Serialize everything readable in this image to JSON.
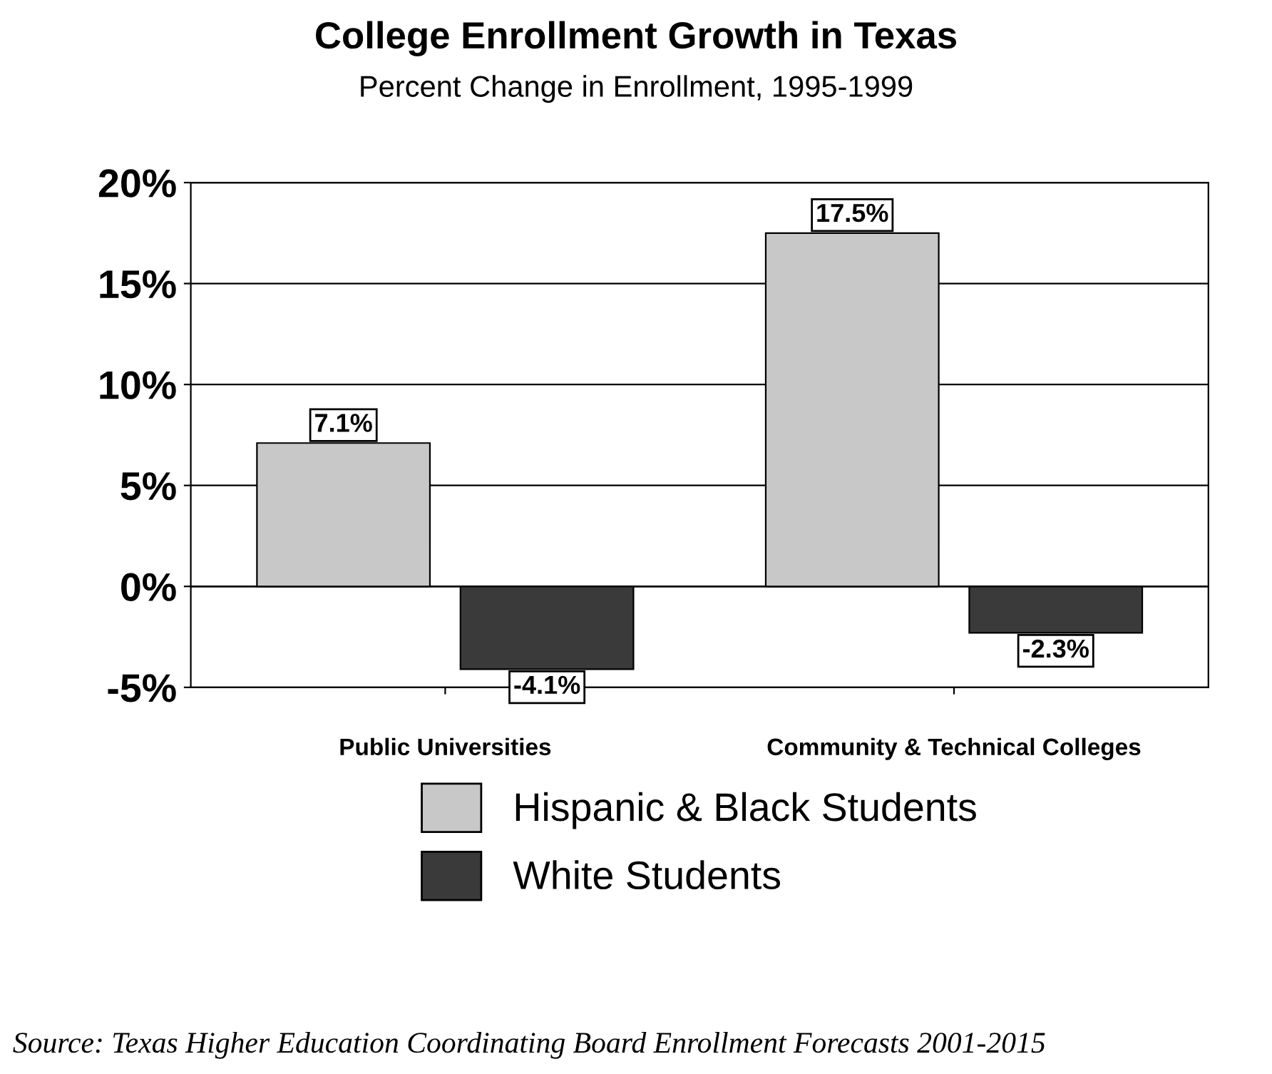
{
  "chart_data": {
    "type": "bar",
    "title": "College Enrollment Growth in Texas",
    "subtitle": "Percent Change in Enrollment, 1995-1999",
    "categories": [
      "Public Universities",
      "Community & Technical Colleges"
    ],
    "series": [
      {
        "name": "Hispanic & Black Students",
        "color": "#c8c8c8",
        "values": [
          7.1,
          17.5
        ],
        "value_labels": [
          "7.1%",
          "17.5%"
        ]
      },
      {
        "name": "White Students",
        "color": "#3a3a3a",
        "values": [
          -4.1,
          -2.3
        ],
        "value_labels": [
          "-4.1%",
          "-2.3%"
        ]
      }
    ],
    "ylim": [
      -5,
      20
    ],
    "yticks": [
      {
        "value": -5,
        "label": "-5%"
      },
      {
        "value": 0,
        "label": "0%"
      },
      {
        "value": 5,
        "label": "5%"
      },
      {
        "value": 10,
        "label": "10%"
      },
      {
        "value": 15,
        "label": "15%"
      },
      {
        "value": 20,
        "label": "20%"
      }
    ],
    "grid": "y",
    "legend": "bottom",
    "annotations": [
      "Source: Texas Higher Education Coordinating Board Enrollment Forecasts 2001-2015"
    ]
  }
}
